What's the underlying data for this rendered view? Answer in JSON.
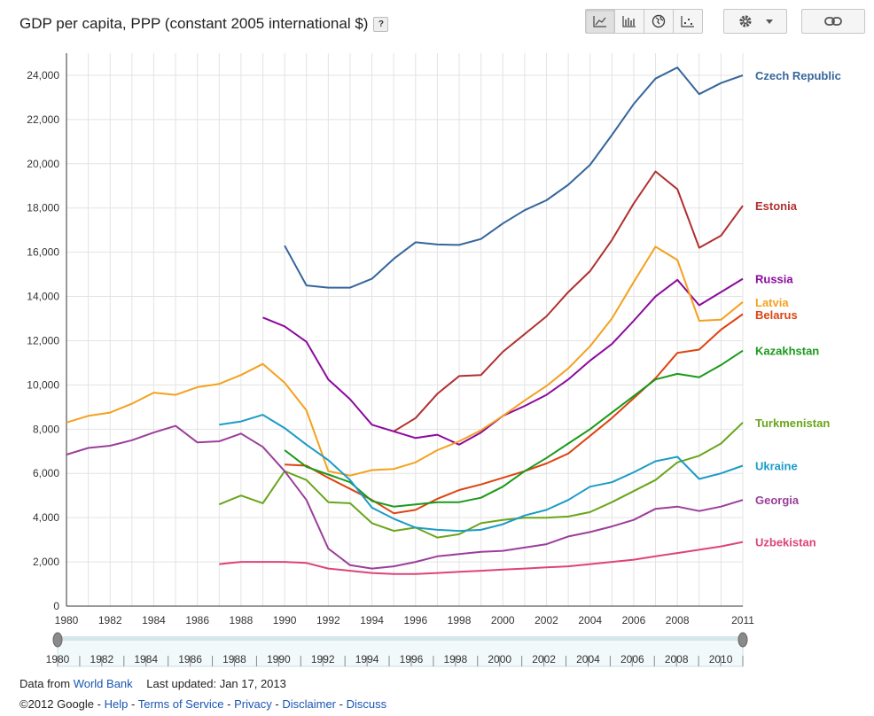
{
  "header": {
    "title": "GDP per capita, PPP (constant 2005 international $)",
    "help_label": "?"
  },
  "toolbar": {
    "chart_types": [
      {
        "name": "line-chart-icon",
        "active": true
      },
      {
        "name": "bar-chart-icon",
        "active": false
      },
      {
        "name": "map-icon",
        "active": false
      },
      {
        "name": "scatter-chart-icon",
        "active": false
      }
    ],
    "settings_icon": "gear-icon",
    "settings_dropdown_icon": "chevron-down-icon",
    "link_icon": "link-icon"
  },
  "footer": {
    "data_from": "Data from",
    "source_link": "World Bank",
    "last_updated": "Last updated: Jan 17, 2013",
    "copyright": "©2012 Google -",
    "links": [
      "Help",
      "Terms of Service",
      "Privacy",
      "Disclaimer",
      "Discuss"
    ],
    "separator": "-"
  },
  "chart_data": {
    "type": "line",
    "title": "GDP per capita, PPP (constant 2005 international $)",
    "xlim": [
      1980,
      2011
    ],
    "ylim": [
      0,
      25000
    ],
    "x_ticks": [
      1980,
      1982,
      1984,
      1986,
      1988,
      1990,
      1992,
      1994,
      1996,
      1998,
      2000,
      2002,
      2004,
      2006,
      2008,
      2011
    ],
    "y_ticks": [
      0,
      2000,
      4000,
      6000,
      8000,
      10000,
      12000,
      14000,
      16000,
      18000,
      20000,
      22000,
      24000
    ],
    "y_tick_labels": [
      "0",
      "2,000",
      "4,000",
      "6,000",
      "8,000",
      "10,000",
      "12,000",
      "14,000",
      "16,000",
      "18,000",
      "20,000",
      "22,000",
      "24,000"
    ],
    "grid": true,
    "legend": "right (end-of-line labels)",
    "slider_ticks": [
      1980,
      1982,
      1984,
      1986,
      1988,
      1990,
      1992,
      1994,
      1996,
      1998,
      2000,
      2002,
      2004,
      2006,
      2008,
      2010
    ],
    "series": [
      {
        "name": "Czech Republic",
        "color": "#36669a",
        "start": 1990,
        "values": [
          16300,
          14500,
          14400,
          14400,
          14800,
          15700,
          16450,
          16350,
          16330,
          16600,
          17300,
          17900,
          18350,
          19050,
          19950,
          21300,
          22700,
          23850,
          24350,
          23150,
          23650,
          24000
        ]
      },
      {
        "name": "Estonia",
        "color": "#b03030",
        "start": 1995,
        "values": [
          7900,
          8500,
          9600,
          10400,
          10450,
          11500,
          12300,
          13100,
          14200,
          15150,
          16550,
          18200,
          19650,
          18850,
          16200,
          16750,
          18100
        ]
      },
      {
        "name": "Russia",
        "color": "#8b0a9e",
        "start": 1989,
        "values": [
          13050,
          12650,
          11950,
          10250,
          9350,
          8200,
          7900,
          7600,
          7750,
          7300,
          7850,
          8600,
          9050,
          9550,
          10250,
          11100,
          11850,
          12900,
          14000,
          14750,
          13600,
          14200,
          14800
        ]
      },
      {
        "name": "Latvia",
        "color": "#f4a11e",
        "start": 1980,
        "values": [
          8300,
          8600,
          8750,
          9150,
          9650,
          9550,
          9900,
          10050,
          10450,
          10950,
          10100,
          8850,
          6100,
          5900,
          6150,
          6200,
          6500,
          7050,
          7450,
          7950,
          8600,
          9300,
          9950,
          10750,
          11750,
          13000,
          14650,
          16250,
          15650,
          12900,
          12950,
          13750
        ]
      },
      {
        "name": "Belarus",
        "color": "#dd4411",
        "start": 1990,
        "values": [
          6400,
          6350,
          5800,
          5300,
          4800,
          4200,
          4350,
          4850,
          5250,
          5500,
          5800,
          6100,
          6450,
          6900,
          7700,
          8500,
          9400,
          10300,
          11450,
          11600,
          12500,
          13200
        ]
      },
      {
        "name": "Kazakhstan",
        "color": "#1a9a1a",
        "start": 1990,
        "values": [
          7050,
          6300,
          5950,
          5600,
          4750,
          4500,
          4600,
          4700,
          4700,
          4900,
          5400,
          6100,
          6700,
          7350,
          8000,
          8750,
          9500,
          10250,
          10500,
          10350,
          10900,
          11550
        ]
      },
      {
        "name": "Turkmenistan",
        "color": "#6aa51a",
        "start": 1987,
        "values": [
          4600,
          5000,
          4650,
          6100,
          5700,
          4700,
          4650,
          3750,
          3400,
          3550,
          3100,
          3250,
          3750,
          3900,
          4000,
          4000,
          4050,
          4250,
          4700,
          5200,
          5700,
          6500,
          6800,
          7350,
          8300
        ]
      },
      {
        "name": "Ukraine",
        "color": "#1c9bc6",
        "start": 1987,
        "values": [
          8200,
          8350,
          8650,
          8050,
          7300,
          6600,
          5700,
          4450,
          3950,
          3550,
          3450,
          3400,
          3450,
          3700,
          4100,
          4350,
          4800,
          5400,
          5600,
          6050,
          6550,
          6750,
          5750,
          6000,
          6350
        ]
      },
      {
        "name": "Georgia",
        "color": "#9a3f9a",
        "start": 1980,
        "values": [
          6850,
          7150,
          7250,
          7500,
          7850,
          8150,
          7400,
          7450,
          7800,
          7200,
          6100,
          4800,
          2600,
          1850,
          1700,
          1800,
          2000,
          2250,
          2350,
          2450,
          2500,
          2650,
          2800,
          3150,
          3350,
          3600,
          3900,
          4400,
          4500,
          4300,
          4500,
          4800
        ]
      },
      {
        "name": "Uzbekistan",
        "color": "#dd4477",
        "start": 1987,
        "values": [
          1900,
          2000,
          2000,
          2000,
          1950,
          1700,
          1600,
          1500,
          1450,
          1450,
          1500,
          1550,
          1600,
          1650,
          1700,
          1750,
          1800,
          1900,
          2000,
          2100,
          2250,
          2400,
          2550,
          2700,
          2900
        ]
      }
    ]
  }
}
